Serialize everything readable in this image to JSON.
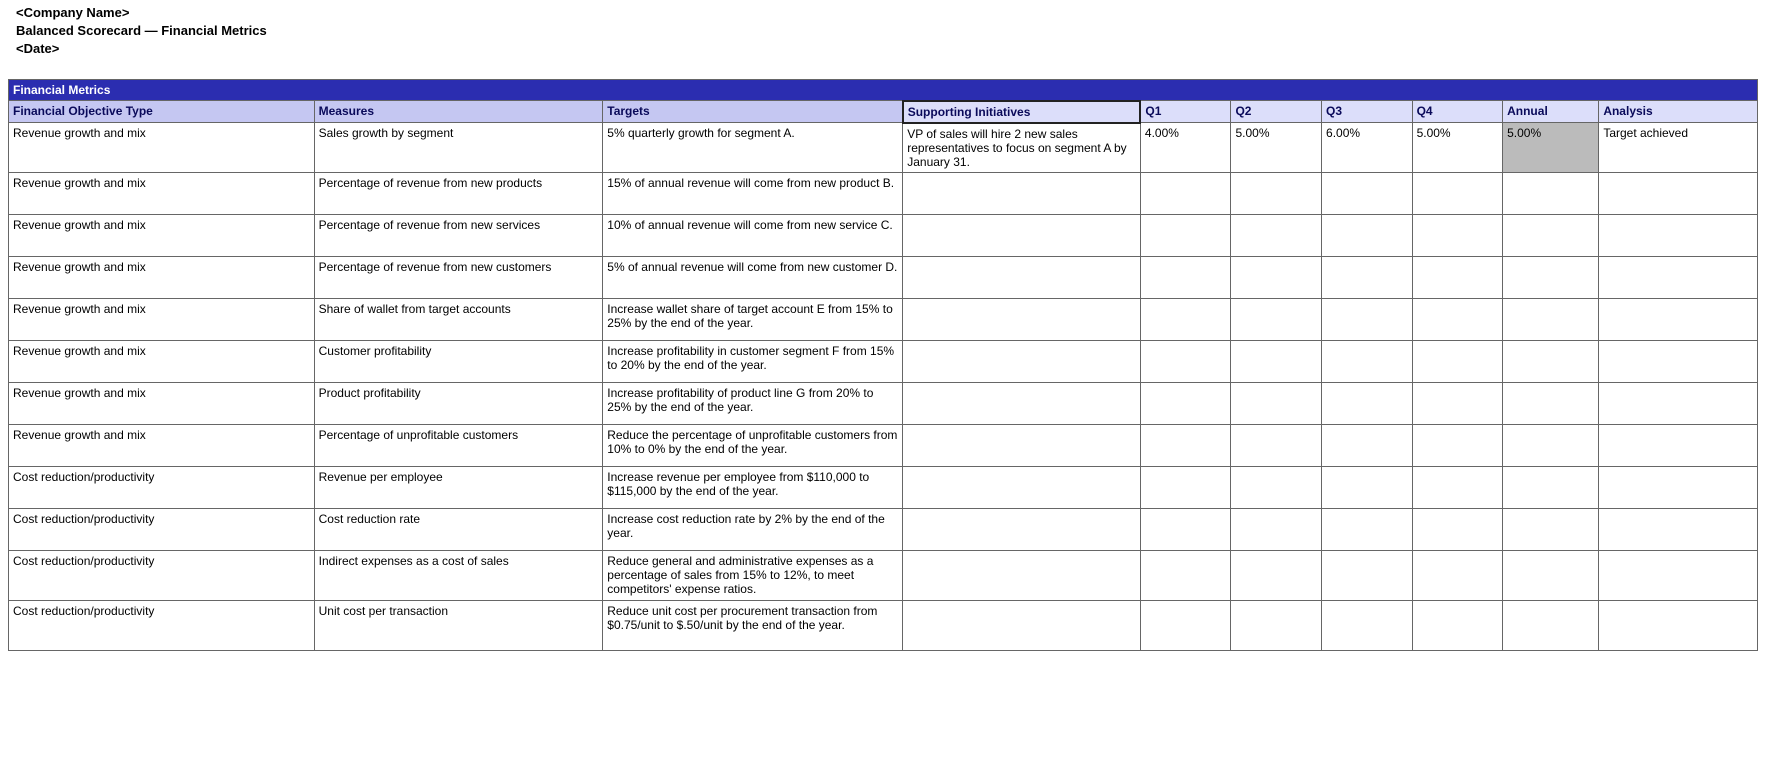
{
  "header": {
    "company": "<Company Name>",
    "title": "Balanced Scorecard — Financial Metrics",
    "date": "<Date>"
  },
  "table": {
    "section_title": "Financial Metrics",
    "columns": {
      "objective": "Financial Objective Type",
      "measures": "Measures",
      "targets": "Targets",
      "supporting": "Supporting Initiatives",
      "q1": "Q1",
      "q2": "Q2",
      "q3": "Q3",
      "q4": "Q4",
      "annual": "Annual",
      "analysis": "Analysis"
    },
    "col_widths": {
      "objective": 270,
      "measures": 255,
      "targets": 265,
      "supporting": 210,
      "q1": 80,
      "q2": 80,
      "q3": 80,
      "q4": 80,
      "annual": 85,
      "analysis": 140
    },
    "rows": [
      {
        "objective": "Revenue growth and mix",
        "measures": "Sales growth by segment",
        "targets": "5% quarterly growth for segment A.",
        "supporting": "VP of sales will hire 2 new sales representatives to focus on segment A by January 31.",
        "q1": "4.00%",
        "q2": "5.00%",
        "q3": "6.00%",
        "q4": "5.00%",
        "annual": "5.00%",
        "annual_highlight": true,
        "analysis": "Target achieved"
      },
      {
        "objective": "Revenue growth and mix",
        "measures": "Percentage of revenue from new products",
        "targets": "15% of annual revenue will come from new product B.",
        "supporting": "",
        "q1": "",
        "q2": "",
        "q3": "",
        "q4": "",
        "annual": "",
        "analysis": ""
      },
      {
        "objective": "Revenue growth and mix",
        "measures": "Percentage of revenue from new services",
        "targets": "10% of annual revenue will come from new service C.",
        "supporting": "",
        "q1": "",
        "q2": "",
        "q3": "",
        "q4": "",
        "annual": "",
        "analysis": ""
      },
      {
        "objective": "Revenue growth and mix",
        "measures": "Percentage of revenue from new customers",
        "targets": "5% of annual revenue will come from new customer D.",
        "supporting": "",
        "q1": "",
        "q2": "",
        "q3": "",
        "q4": "",
        "annual": "",
        "analysis": ""
      },
      {
        "objective": "Revenue growth and mix",
        "measures": "Share of wallet from target accounts",
        "targets": "Increase wallet share of target account E from 15% to 25% by the end of the year.",
        "supporting": "",
        "q1": "",
        "q2": "",
        "q3": "",
        "q4": "",
        "annual": "",
        "analysis": ""
      },
      {
        "objective": "Revenue growth and mix",
        "measures": "Customer profitability",
        "targets": "Increase profitability in customer segment F from 15% to 20% by the end of the year.",
        "supporting": "",
        "q1": "",
        "q2": "",
        "q3": "",
        "q4": "",
        "annual": "",
        "analysis": ""
      },
      {
        "objective": "Revenue growth and mix",
        "measures": "Product profitability",
        "targets": "Increase profitability of product line G from 20% to 25% by the end of the year.",
        "supporting": "",
        "q1": "",
        "q2": "",
        "q3": "",
        "q4": "",
        "annual": "",
        "analysis": ""
      },
      {
        "objective": "Revenue growth and mix",
        "measures": "Percentage of unprofitable customers",
        "targets": "Reduce the percentage of unprofitable customers from 10% to 0% by the end of the year.",
        "supporting": "",
        "q1": "",
        "q2": "",
        "q3": "",
        "q4": "",
        "annual": "",
        "analysis": ""
      },
      {
        "objective": "Cost reduction/productivity",
        "measures": "Revenue per employee",
        "targets": "Increase revenue per employee from $110,000 to $115,000 by the end of the year.",
        "supporting": "",
        "q1": "",
        "q2": "",
        "q3": "",
        "q4": "",
        "annual": "",
        "analysis": ""
      },
      {
        "objective": "Cost reduction/productivity",
        "measures": "Cost reduction rate",
        "targets": "Increase cost reduction rate by 2% by the end of the year.",
        "supporting": "",
        "q1": "",
        "q2": "",
        "q3": "",
        "q4": "",
        "annual": "",
        "analysis": ""
      },
      {
        "objective": "Cost reduction/productivity",
        "measures": "Indirect expenses as a cost of sales",
        "targets": "Reduce general and administrative expenses as a percentage of sales from 15% to 12%, to meet competitors' expense ratios.",
        "supporting": "",
        "q1": "",
        "q2": "",
        "q3": "",
        "q4": "",
        "annual": "",
        "analysis": ""
      },
      {
        "objective": "Cost reduction/productivity",
        "measures": "Unit cost per transaction",
        "targets": "Reduce unit cost per procurement transaction from $0.75/unit to $.50/unit by the end of the year.",
        "supporting": "",
        "q1": "",
        "q2": "",
        "q3": "",
        "q4": "",
        "annual": "",
        "analysis": ""
      }
    ]
  },
  "style": {
    "title_bar_bg": "#2b2db0",
    "title_bar_fg": "#ffffff",
    "col_head_bg": "#c5c7f2",
    "col_head_light_bg": "#dcdefa",
    "col_head_fg": "#0a0a5a",
    "highlight_bg": "#bbbbbb",
    "border_color": "#666666",
    "font_family": "Arial, sans-serif",
    "font_size_base": 12
  }
}
